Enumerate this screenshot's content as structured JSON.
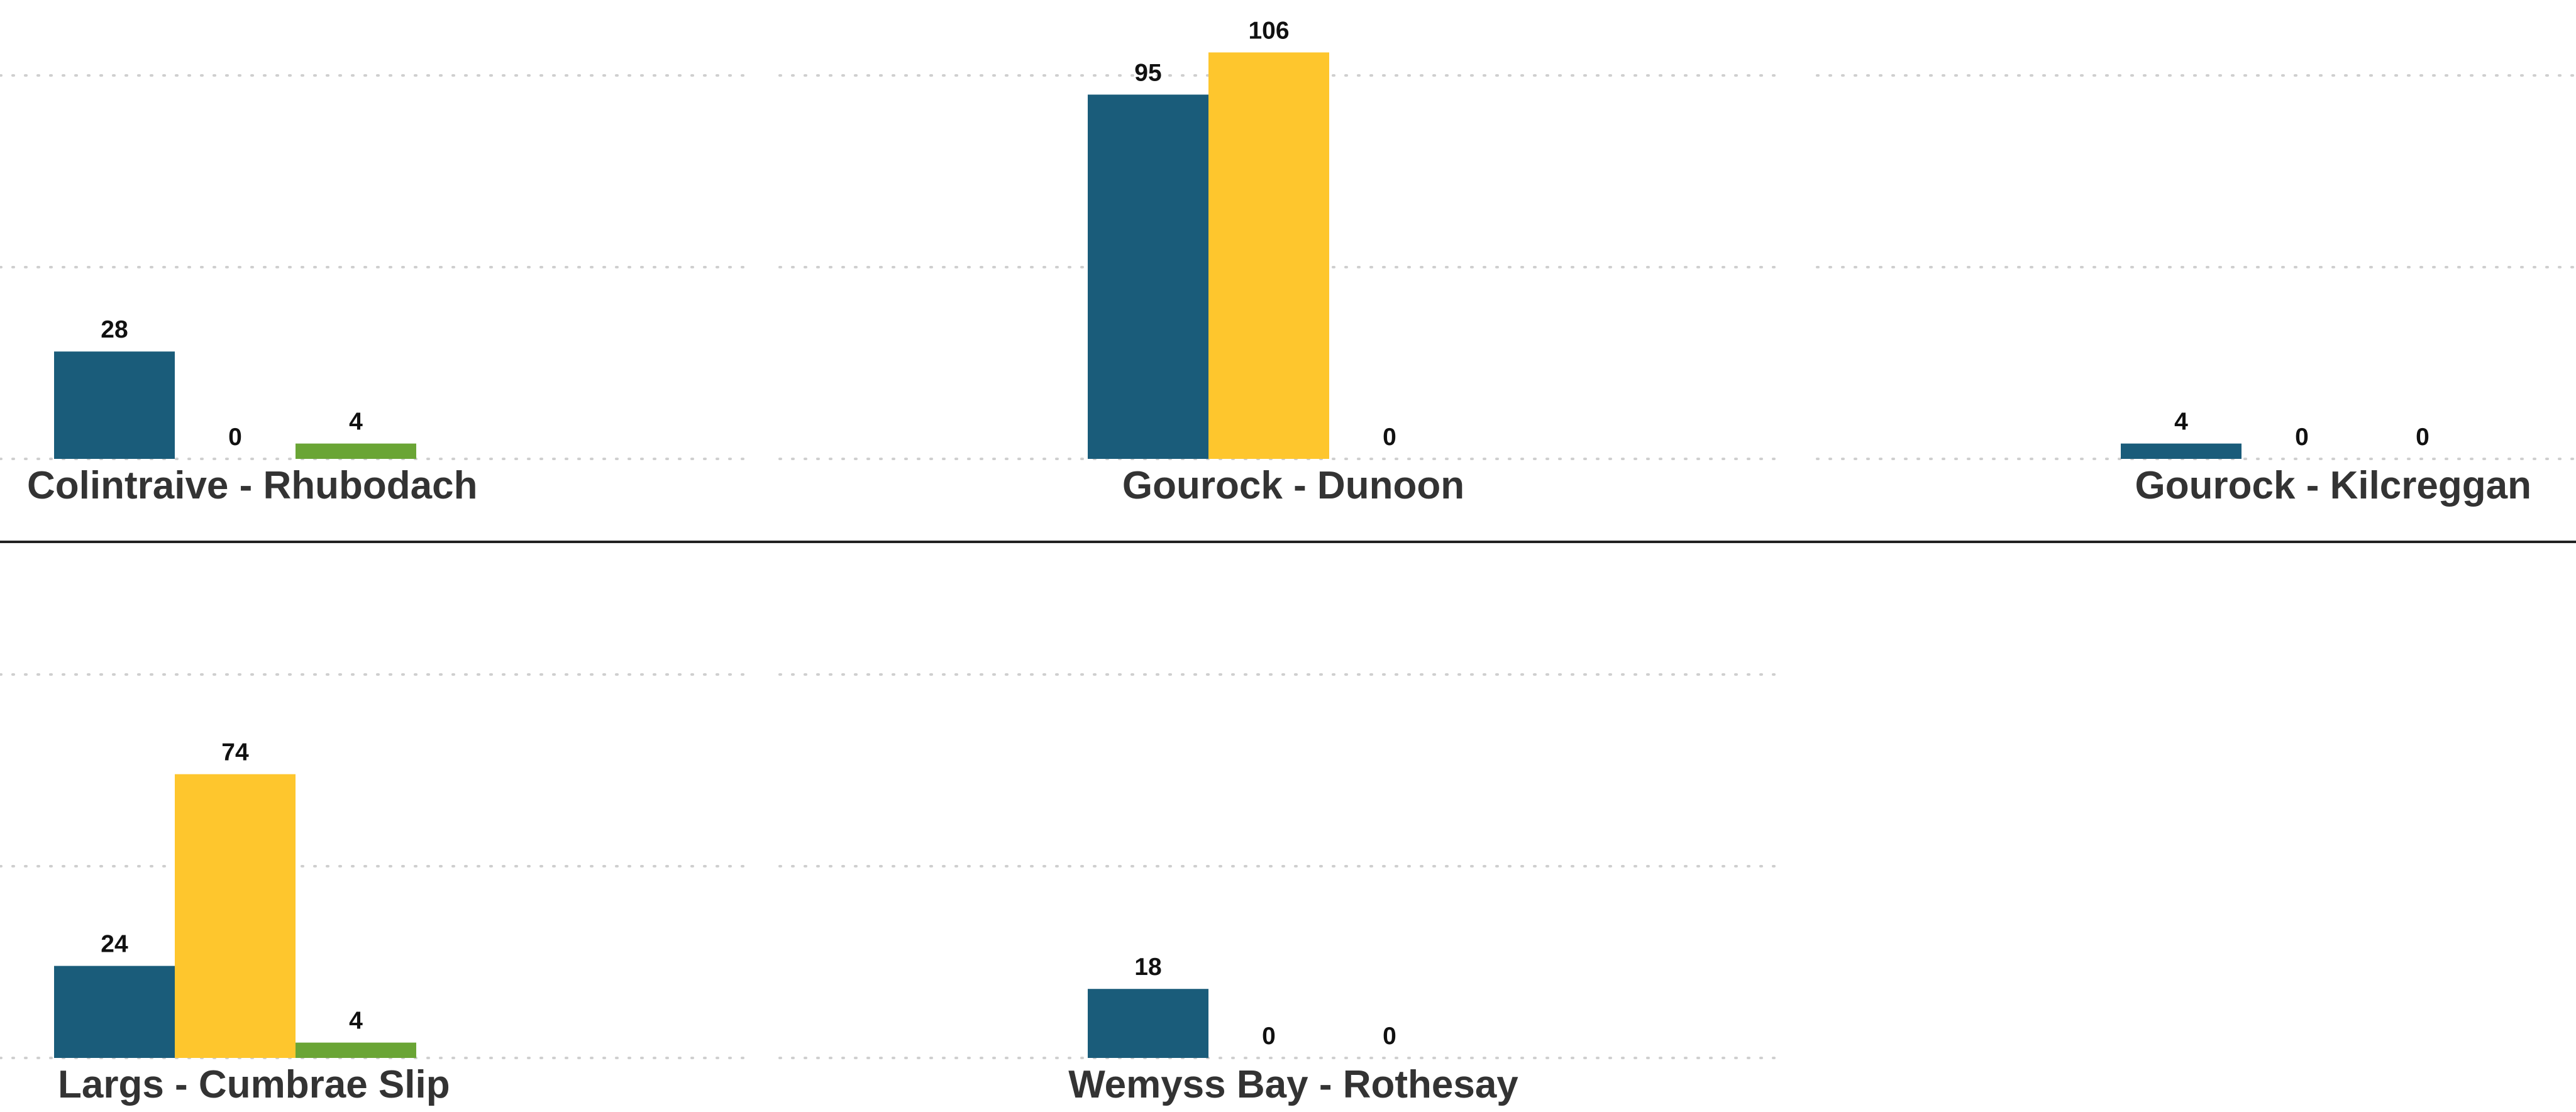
{
  "chart_data": {
    "type": "bar",
    "layout": "small-multiples",
    "grid": true,
    "ylim": [
      0,
      120
    ],
    "series_colors": [
      "#1a5c7a",
      "#fec62d",
      "#6aa535"
    ],
    "panels": [
      {
        "title": "Colintraive - Rhubodach",
        "values": [
          28,
          0,
          4
        ]
      },
      {
        "title": "Gourock - Dunoon",
        "values": [
          95,
          106,
          0
        ]
      },
      {
        "title": "Gourock - Kilcreggan",
        "values": [
          4,
          0,
          0
        ]
      },
      {
        "title": "Largs - Cumbrae Slip",
        "values": [
          24,
          74,
          4
        ]
      },
      {
        "title": "Wemyss Bay - Rothesay",
        "values": [
          18,
          0,
          0
        ]
      }
    ]
  }
}
